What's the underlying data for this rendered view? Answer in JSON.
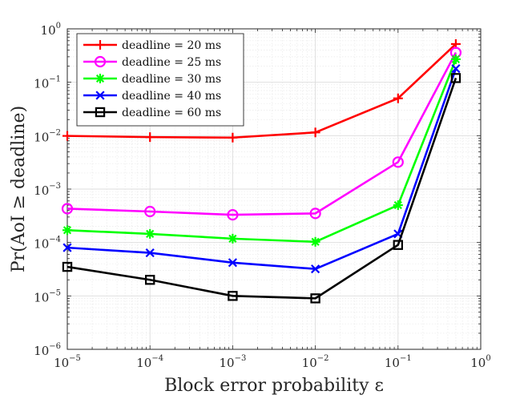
{
  "chart_data": {
    "type": "line",
    "xlabel": "Block error probability ε",
    "ylabel": "Pr(AoI ≥ deadline)",
    "xscale": "log",
    "yscale": "log",
    "xlim": [
      1e-05,
      1
    ],
    "ylim": [
      1e-06,
      1
    ],
    "grid": true,
    "legend_position": "top-left",
    "x_ticks": [
      {
        "base": "10",
        "exp": "−5"
      },
      {
        "base": "10",
        "exp": "−4"
      },
      {
        "base": "10",
        "exp": "−3"
      },
      {
        "base": "10",
        "exp": "−2"
      },
      {
        "base": "10",
        "exp": "−1"
      },
      {
        "base": "10",
        "exp": "0"
      }
    ],
    "y_ticks": [
      {
        "base": "10",
        "exp": "−6"
      },
      {
        "base": "10",
        "exp": "−5"
      },
      {
        "base": "10",
        "exp": "−4"
      },
      {
        "base": "10",
        "exp": "−3"
      },
      {
        "base": "10",
        "exp": "−2"
      },
      {
        "base": "10",
        "exp": "−1"
      },
      {
        "base": "10",
        "exp": "0"
      }
    ],
    "x": [
      1e-05,
      0.0001,
      0.001,
      0.01,
      0.1,
      0.5
    ],
    "series": [
      {
        "name": "deadline = 20 ms",
        "color": "#ff0000",
        "marker": "plus",
        "values": [
          0.0099,
          0.0094,
          0.0092,
          0.0115,
          0.05,
          0.52
        ]
      },
      {
        "name": "deadline = 25 ms",
        "color": "#ff00ff",
        "marker": "circle",
        "values": [
          0.00043,
          0.00038,
          0.00033,
          0.00035,
          0.0032,
          0.36
        ]
      },
      {
        "name": "deadline = 30 ms",
        "color": "#00ff00",
        "marker": "asterisk",
        "values": [
          0.00017,
          0.000145,
          0.000118,
          0.000103,
          0.0005,
          0.27
        ]
      },
      {
        "name": "deadline = 40 ms",
        "color": "#0000ff",
        "marker": "x",
        "values": [
          8e-05,
          6.4e-05,
          4.2e-05,
          3.2e-05,
          0.000145,
          0.18
        ]
      },
      {
        "name": "deadline = 60 ms",
        "color": "#000000",
        "marker": "square",
        "values": [
          3.5e-05,
          2e-05,
          1e-05,
          9e-06,
          9e-05,
          0.12
        ]
      }
    ]
  }
}
